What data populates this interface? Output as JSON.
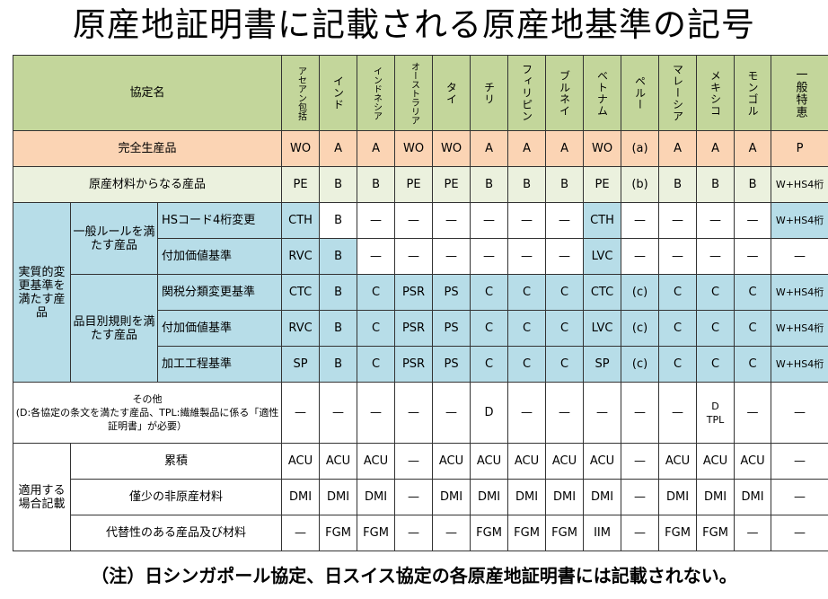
{
  "title": "原産地証明書に記載される原産地基準の記号",
  "note": "（注）日シンガポール協定、日スイス協定の各原産地証明書には記載されない。",
  "header": {
    "label": "協定名",
    "agreements": [
      "アセアン包括",
      "インド",
      "インドネシア",
      "オーストラリア",
      "タイ",
      "チリ",
      "フィリピン",
      "ブルネイ",
      "ベトナム",
      "ペルー",
      "マレーシア",
      "メキシコ",
      "モンゴル",
      "一般特恵"
    ]
  },
  "rows": {
    "wholly": {
      "label": "完全生産品",
      "values": [
        "WO",
        "A",
        "A",
        "WO",
        "WO",
        "A",
        "A",
        "A",
        "WO",
        "(a)",
        "A",
        "A",
        "A",
        "P"
      ]
    },
    "materials": {
      "label": "原産材料からなる産品",
      "values": [
        "PE",
        "B",
        "B",
        "PE",
        "PE",
        "B",
        "B",
        "B",
        "PE",
        "(b)",
        "B",
        "B",
        "B",
        "W+HS4桁"
      ]
    },
    "substantial": {
      "label": "実質的変更基準を満たす産品",
      "general": {
        "label": "一般ルールを満たす産品",
        "hs": {
          "label": "HSコード4桁変更",
          "values": [
            "CTH",
            "B",
            "—",
            "—",
            "—",
            "—",
            "—",
            "—",
            "CTH",
            "—",
            "—",
            "—",
            "—",
            "W+HS4桁"
          ]
        },
        "va": {
          "label": "付加価値基準",
          "values": [
            "RVC",
            "B",
            "—",
            "—",
            "—",
            "—",
            "—",
            "—",
            "LVC",
            "—",
            "—",
            "—",
            "—",
            "—"
          ]
        }
      },
      "psr": {
        "label": "品目別規則を満たす産品",
        "tariff": {
          "label": "関税分類変更基準",
          "values": [
            "CTC",
            "B",
            "C",
            "PSR",
            "PS",
            "C",
            "C",
            "C",
            "CTC",
            "(c)",
            "C",
            "C",
            "C",
            "W+HS4桁"
          ]
        },
        "va": {
          "label": "付加価値基準",
          "values": [
            "RVC",
            "B",
            "C",
            "PSR",
            "PS",
            "C",
            "C",
            "C",
            "LVC",
            "(c)",
            "C",
            "C",
            "C",
            "W+HS4桁"
          ]
        },
        "process": {
          "label": "加工工程基準",
          "values": [
            "SP",
            "B",
            "C",
            "PSR",
            "PS",
            "C",
            "C",
            "C",
            "SP",
            "(c)",
            "C",
            "C",
            "C",
            "W+HS4桁"
          ]
        }
      }
    },
    "other": {
      "label": "その他\n(D:各協定の条文を満たす産品、TPL:繊維製品に係る「適性証明書」が必要）",
      "values": [
        "—",
        "—",
        "—",
        "—",
        "—",
        "D",
        "—",
        "—",
        "—",
        "—",
        "—",
        "D\nTPL",
        "—",
        "—"
      ]
    },
    "applicable": {
      "label": "適用する場合記載",
      "cumulation": {
        "label": "累積",
        "values": [
          "ACU",
          "ACU",
          "ACU",
          "—",
          "ACU",
          "ACU",
          "ACU",
          "ACU",
          "ACU",
          "—",
          "ACU",
          "ACU",
          "ACU",
          "—"
        ]
      },
      "deminimis": {
        "label": "僅少の非原産材料",
        "values": [
          "DMI",
          "DMI",
          "DMI",
          "—",
          "DMI",
          "DMI",
          "DMI",
          "DMI",
          "DMI",
          "—",
          "DMI",
          "DMI",
          "DMI",
          "—"
        ]
      },
      "fungible": {
        "label": "代替性のある産品及び材料",
        "values": [
          "—",
          "FGM",
          "FGM",
          "—",
          "—",
          "FGM",
          "FGM",
          "FGM",
          "IIM",
          "—",
          "FGM",
          "FGM",
          "—",
          "—"
        ]
      }
    }
  }
}
